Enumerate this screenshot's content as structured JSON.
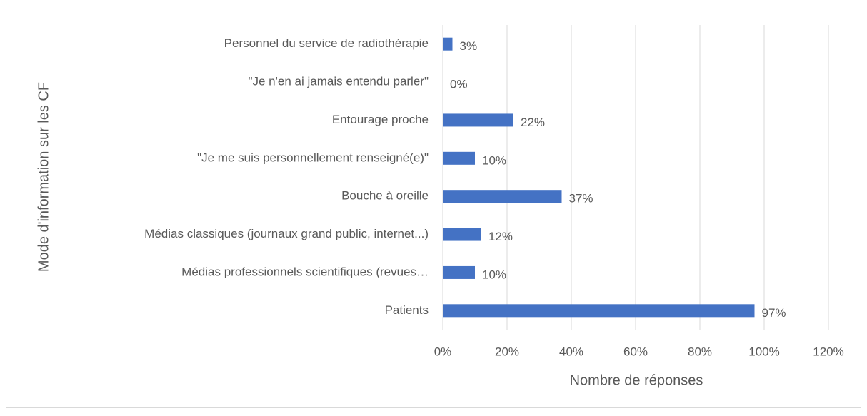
{
  "chart_data": {
    "type": "hbar",
    "xlabel": "Nombre de réponses",
    "ylabel": "Mode d'information sur les CF",
    "categories": [
      "Personnel du service de radiothérapie",
      "\"Je n'en ai jamais entendu parler\"",
      "Entourage proche",
      "\"Je me suis personnellement renseigné(e)\"",
      "Bouche à oreille",
      "Médias classiques (journaux grand public, internet...)",
      "Médias professionnels scientifiques (revues…",
      "Patients"
    ],
    "values": [
      3,
      0,
      22,
      10,
      37,
      12,
      10,
      97
    ],
    "value_labels": [
      "3%",
      "0%",
      "22%",
      "10%",
      "37%",
      "12%",
      "10%",
      "97%"
    ],
    "color": "#4472c4",
    "xlim": [
      0,
      120
    ],
    "xticks": [
      {
        "value": 0,
        "label": "0%"
      },
      {
        "value": 20,
        "label": "20%"
      },
      {
        "value": 40,
        "label": "40%"
      },
      {
        "value": 60,
        "label": "60%"
      },
      {
        "value": 80,
        "label": "80%"
      },
      {
        "value": 100,
        "label": "100%"
      },
      {
        "value": 120,
        "label": "120%"
      }
    ],
    "grid": true
  }
}
